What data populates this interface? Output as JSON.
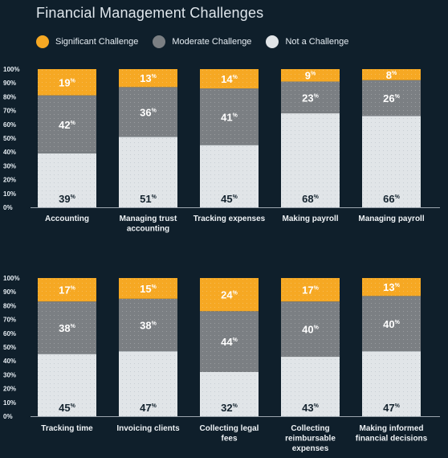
{
  "title": "Financial Management Challenges",
  "legend": [
    {
      "label": "Significant Challenge",
      "color": "#f6a823"
    },
    {
      "label": "Moderate Challenge",
      "color": "#7b7f83"
    },
    {
      "label": "Not a Challenge",
      "color": "#e1e5e8"
    }
  ],
  "chart_data": [
    {
      "type": "bar",
      "stacked": true,
      "ylim": [
        0,
        100
      ],
      "yticks": [
        "0%",
        "10%",
        "20%",
        "30%",
        "40%",
        "50%",
        "60%",
        "70%",
        "80%",
        "90%",
        "100%"
      ],
      "categories": [
        [
          "Accounting"
        ],
        [
          "Managing trust",
          "accounting"
        ],
        [
          "Tracking expenses"
        ],
        [
          "Making payroll"
        ],
        [
          "Managing payroll"
        ]
      ],
      "series": [
        {
          "name": "Not a Challenge",
          "values": [
            39,
            51,
            45,
            68,
            66
          ],
          "labels": [
            "39%",
            "51%",
            "45%",
            "68%",
            "66%"
          ]
        },
        {
          "name": "Moderate Challenge",
          "values": [
            42,
            36,
            41,
            23,
            26
          ],
          "labels": [
            "42%",
            "36%",
            "41%",
            "23%",
            "26%"
          ]
        },
        {
          "name": "Significant Challenge",
          "values": [
            19,
            13,
            14,
            9,
            8
          ],
          "labels": [
            "19%",
            "13%",
            "14%",
            "9%",
            "8%"
          ]
        }
      ]
    },
    {
      "type": "bar",
      "stacked": true,
      "ylim": [
        0,
        100
      ],
      "yticks": [
        "0%",
        "10%",
        "20%",
        "30%",
        "40%",
        "50%",
        "60%",
        "70%",
        "80%",
        "90%",
        "100%"
      ],
      "categories": [
        [
          "Tracking time"
        ],
        [
          "Invoicing clients"
        ],
        [
          "Collecting legal",
          "fees"
        ],
        [
          "Collecting",
          "reimbursable",
          "expenses"
        ],
        [
          "Making informed",
          "financial decisions"
        ]
      ],
      "series": [
        {
          "name": "Not a Challenge",
          "values": [
            45,
            47,
            32,
            43,
            47
          ],
          "labels": [
            "45%",
            "47%",
            "32%",
            "43%",
            "47%"
          ]
        },
        {
          "name": "Moderate Challenge",
          "values": [
            38,
            38,
            44,
            40,
            40
          ],
          "labels": [
            "38%",
            "38%",
            "44%",
            "40%",
            "40%"
          ]
        },
        {
          "name": "Significant Challenge",
          "values": [
            17,
            15,
            24,
            17,
            13
          ],
          "labels": [
            "17%",
            "15%",
            "24%",
            "17%",
            "13%"
          ]
        }
      ]
    }
  ]
}
